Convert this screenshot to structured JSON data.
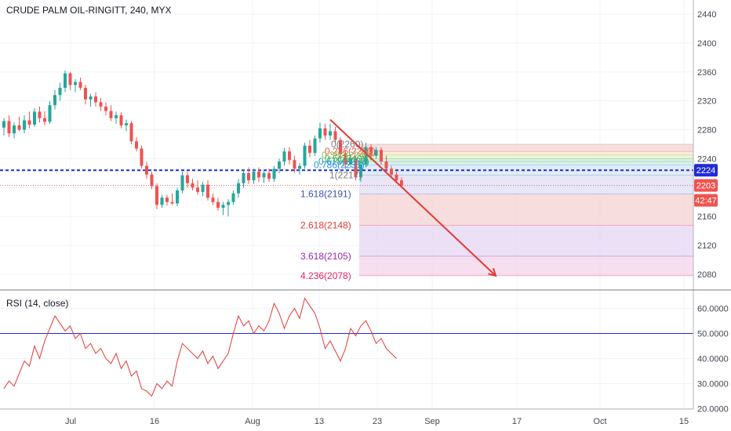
{
  "header": {
    "symbol_title": "CRUDE PALM OIL-RINGITT, 240, MYX"
  },
  "rsi_panel": {
    "title": "RSI (14, close)"
  },
  "colors": {
    "up": "#26a69a",
    "down": "#ef5350",
    "ma_line": "#1f2bd6",
    "rsi_line": "#e53935",
    "arrow": "#e53935",
    "price_badge": "#ef5350",
    "ma_badge": "#1f2bd6"
  },
  "chart_data": [
    {
      "type": "candlestick",
      "title": "CRUDE PALM OIL-RINGITT, 240, MYX",
      "y_ticks": [
        2440,
        2400,
        2360,
        2320,
        2280,
        2240,
        2200,
        2160,
        2120,
        2080
      ],
      "x_ticks": [
        "Jul",
        "16",
        "Aug",
        "13",
        "23",
        "Sep",
        "17",
        "Oct",
        "15"
      ],
      "ylim": [
        2055,
        2450
      ],
      "grid": true,
      "price_badges": [
        {
          "label": "2224",
          "kind": "ma"
        },
        {
          "label": "2203",
          "kind": "last"
        },
        {
          "label": "42:47",
          "kind": "countdown"
        }
      ],
      "horizontal_lines": [
        {
          "value": 2224,
          "style": "dashed",
          "color": "#1f2bd6"
        },
        {
          "value": 2203,
          "style": "dotted",
          "color": "#ef5350"
        }
      ],
      "fib_extension": [
        {
          "ratio": "0",
          "price": 2260,
          "label": "0(2260)",
          "color": "#787b86",
          "band": "#f6d3d3"
        },
        {
          "ratio": "0.236",
          "price": 2250,
          "label": "0.236(2250)",
          "color": "#ef5350",
          "band": "#f9e6cc"
        },
        {
          "ratio": "0.382",
          "price": 2245,
          "label": "0.382(2245)",
          "color": "#8bc34a",
          "band": "#e1f1d2"
        },
        {
          "ratio": "0.5",
          "price": 2240,
          "label": "0.5(2240)",
          "color": "#4caf50",
          "band": "#d2eccd"
        },
        {
          "ratio": "0.618",
          "price": 2236,
          "label": "0.618(2236)",
          "color": "#26a69a",
          "band": "#cfe9e7"
        },
        {
          "ratio": "0.786",
          "price": 2231,
          "label": "0.786(2231)",
          "color": "#2196f3",
          "band": "#d6e6f7"
        },
        {
          "ratio": "1",
          "price": 2217,
          "label": "1(2217)",
          "color": "#787b86",
          "band": "#dfdff6"
        },
        {
          "ratio": "1.618",
          "price": 2191,
          "label": "1.618(2191)",
          "color": "#3f51b5",
          "band": "#f4d2d2"
        },
        {
          "ratio": "2.618",
          "price": 2148,
          "label": "2.618(2148)",
          "color": "#e53935",
          "band": "#e6d6f4"
        },
        {
          "ratio": "3.618",
          "price": 2105,
          "label": "3.618(2105)",
          "color": "#9c27b0",
          "band": "#f3d6ea"
        },
        {
          "ratio": "4.236",
          "price": 2078,
          "label": "4.236(2078)",
          "color": "#e91e63",
          "band": null
        }
      ],
      "trend_arrow": {
        "from_price": 2294,
        "to_price": 2078,
        "direction": "down"
      },
      "candles": [
        {
          "o": 2283,
          "h": 2296,
          "l": 2272,
          "c": 2292
        },
        {
          "o": 2292,
          "h": 2300,
          "l": 2270,
          "c": 2275
        },
        {
          "o": 2275,
          "h": 2290,
          "l": 2268,
          "c": 2286
        },
        {
          "o": 2286,
          "h": 2298,
          "l": 2278,
          "c": 2280
        },
        {
          "o": 2280,
          "h": 2300,
          "l": 2275,
          "c": 2293
        },
        {
          "o": 2293,
          "h": 2305,
          "l": 2282,
          "c": 2287
        },
        {
          "o": 2287,
          "h": 2310,
          "l": 2284,
          "c": 2305
        },
        {
          "o": 2305,
          "h": 2312,
          "l": 2290,
          "c": 2296
        },
        {
          "o": 2296,
          "h": 2306,
          "l": 2286,
          "c": 2291
        },
        {
          "o": 2291,
          "h": 2320,
          "l": 2288,
          "c": 2314
        },
        {
          "o": 2314,
          "h": 2335,
          "l": 2308,
          "c": 2328
        },
        {
          "o": 2328,
          "h": 2345,
          "l": 2320,
          "c": 2338
        },
        {
          "o": 2338,
          "h": 2362,
          "l": 2332,
          "c": 2358
        },
        {
          "o": 2358,
          "h": 2360,
          "l": 2335,
          "c": 2342
        },
        {
          "o": 2342,
          "h": 2350,
          "l": 2332,
          "c": 2346
        },
        {
          "o": 2346,
          "h": 2352,
          "l": 2335,
          "c": 2338
        },
        {
          "o": 2338,
          "h": 2342,
          "l": 2315,
          "c": 2322
        },
        {
          "o": 2322,
          "h": 2330,
          "l": 2312,
          "c": 2326
        },
        {
          "o": 2326,
          "h": 2332,
          "l": 2312,
          "c": 2318
        },
        {
          "o": 2318,
          "h": 2324,
          "l": 2306,
          "c": 2312
        },
        {
          "o": 2312,
          "h": 2318,
          "l": 2300,
          "c": 2306
        },
        {
          "o": 2306,
          "h": 2314,
          "l": 2292,
          "c": 2296
        },
        {
          "o": 2296,
          "h": 2305,
          "l": 2288,
          "c": 2300
        },
        {
          "o": 2300,
          "h": 2304,
          "l": 2282,
          "c": 2286
        },
        {
          "o": 2286,
          "h": 2294,
          "l": 2278,
          "c": 2289
        },
        {
          "o": 2289,
          "h": 2292,
          "l": 2260,
          "c": 2264
        },
        {
          "o": 2264,
          "h": 2270,
          "l": 2250,
          "c": 2254
        },
        {
          "o": 2254,
          "h": 2258,
          "l": 2226,
          "c": 2230
        },
        {
          "o": 2230,
          "h": 2236,
          "l": 2212,
          "c": 2218
        },
        {
          "o": 2218,
          "h": 2222,
          "l": 2198,
          "c": 2202
        },
        {
          "o": 2202,
          "h": 2206,
          "l": 2170,
          "c": 2176
        },
        {
          "o": 2176,
          "h": 2190,
          "l": 2172,
          "c": 2186
        },
        {
          "o": 2186,
          "h": 2190,
          "l": 2175,
          "c": 2180
        },
        {
          "o": 2180,
          "h": 2192,
          "l": 2176,
          "c": 2178
        },
        {
          "o": 2178,
          "h": 2200,
          "l": 2174,
          "c": 2196
        },
        {
          "o": 2196,
          "h": 2222,
          "l": 2192,
          "c": 2217
        },
        {
          "o": 2217,
          "h": 2222,
          "l": 2200,
          "c": 2206
        },
        {
          "o": 2206,
          "h": 2212,
          "l": 2196,
          "c": 2200
        },
        {
          "o": 2200,
          "h": 2210,
          "l": 2190,
          "c": 2194
        },
        {
          "o": 2194,
          "h": 2208,
          "l": 2188,
          "c": 2204
        },
        {
          "o": 2204,
          "h": 2210,
          "l": 2182,
          "c": 2186
        },
        {
          "o": 2186,
          "h": 2192,
          "l": 2176,
          "c": 2180
        },
        {
          "o": 2180,
          "h": 2186,
          "l": 2168,
          "c": 2172
        },
        {
          "o": 2172,
          "h": 2180,
          "l": 2162,
          "c": 2176
        },
        {
          "o": 2176,
          "h": 2184,
          "l": 2160,
          "c": 2180
        },
        {
          "o": 2180,
          "h": 2196,
          "l": 2176,
          "c": 2192
        },
        {
          "o": 2192,
          "h": 2212,
          "l": 2186,
          "c": 2206
        },
        {
          "o": 2206,
          "h": 2224,
          "l": 2200,
          "c": 2220
        },
        {
          "o": 2220,
          "h": 2228,
          "l": 2205,
          "c": 2210
        },
        {
          "o": 2210,
          "h": 2226,
          "l": 2205,
          "c": 2222
        },
        {
          "o": 2222,
          "h": 2228,
          "l": 2208,
          "c": 2214
        },
        {
          "o": 2214,
          "h": 2224,
          "l": 2206,
          "c": 2220
        },
        {
          "o": 2220,
          "h": 2226,
          "l": 2208,
          "c": 2212
        },
        {
          "o": 2212,
          "h": 2230,
          "l": 2208,
          "c": 2226
        },
        {
          "o": 2226,
          "h": 2240,
          "l": 2220,
          "c": 2236
        },
        {
          "o": 2236,
          "h": 2255,
          "l": 2230,
          "c": 2250
        },
        {
          "o": 2250,
          "h": 2256,
          "l": 2232,
          "c": 2238
        },
        {
          "o": 2238,
          "h": 2244,
          "l": 2220,
          "c": 2226
        },
        {
          "o": 2226,
          "h": 2234,
          "l": 2218,
          "c": 2230
        },
        {
          "o": 2230,
          "h": 2262,
          "l": 2226,
          "c": 2258
        },
        {
          "o": 2258,
          "h": 2266,
          "l": 2242,
          "c": 2248
        },
        {
          "o": 2248,
          "h": 2272,
          "l": 2244,
          "c": 2268
        },
        {
          "o": 2268,
          "h": 2290,
          "l": 2262,
          "c": 2282
        },
        {
          "o": 2282,
          "h": 2288,
          "l": 2266,
          "c": 2272
        },
        {
          "o": 2272,
          "h": 2288,
          "l": 2266,
          "c": 2278
        },
        {
          "o": 2278,
          "h": 2284,
          "l": 2262,
          "c": 2266
        },
        {
          "o": 2266,
          "h": 2270,
          "l": 2240,
          "c": 2246
        },
        {
          "o": 2246,
          "h": 2252,
          "l": 2226,
          "c": 2232
        },
        {
          "o": 2232,
          "h": 2246,
          "l": 2228,
          "c": 2240
        },
        {
          "o": 2240,
          "h": 2244,
          "l": 2210,
          "c": 2214
        },
        {
          "o": 2214,
          "h": 2236,
          "l": 2208,
          "c": 2232
        },
        {
          "o": 2232,
          "h": 2262,
          "l": 2228,
          "c": 2256
        },
        {
          "o": 2256,
          "h": 2260,
          "l": 2238,
          "c": 2244
        },
        {
          "o": 2244,
          "h": 2256,
          "l": 2240,
          "c": 2252
        },
        {
          "o": 2252,
          "h": 2256,
          "l": 2232,
          "c": 2236
        },
        {
          "o": 2236,
          "h": 2244,
          "l": 2222,
          "c": 2226
        },
        {
          "o": 2226,
          "h": 2230,
          "l": 2214,
          "c": 2218
        },
        {
          "o": 2218,
          "h": 2222,
          "l": 2206,
          "c": 2210
        },
        {
          "o": 2210,
          "h": 2214,
          "l": 2200,
          "c": 2203
        }
      ]
    },
    {
      "type": "line",
      "title": "RSI (14, close)",
      "y_ticks": [
        "60.0000",
        "50.0000",
        "40.0000",
        "30.0000",
        "20.0000"
      ],
      "ylim": [
        19,
        65
      ],
      "reference_line": 50,
      "series": [
        {
          "values": [
            28,
            31,
            29,
            34,
            39,
            37,
            45,
            40,
            47,
            52,
            57,
            54,
            51,
            53,
            48,
            50,
            44,
            46,
            42,
            44,
            40,
            38,
            42,
            36,
            39,
            33,
            35,
            28,
            27,
            25,
            30,
            28,
            31,
            29,
            39,
            46,
            44,
            42,
            40,
            43,
            38,
            41,
            36,
            39,
            42,
            50,
            57,
            53,
            55,
            50,
            53,
            51,
            55,
            62,
            58,
            52,
            57,
            60,
            56,
            64,
            61,
            58,
            52,
            44,
            47,
            43,
            39,
            44,
            52,
            49,
            53,
            55,
            51,
            46,
            48,
            44,
            42,
            40
          ]
        }
      ]
    }
  ]
}
